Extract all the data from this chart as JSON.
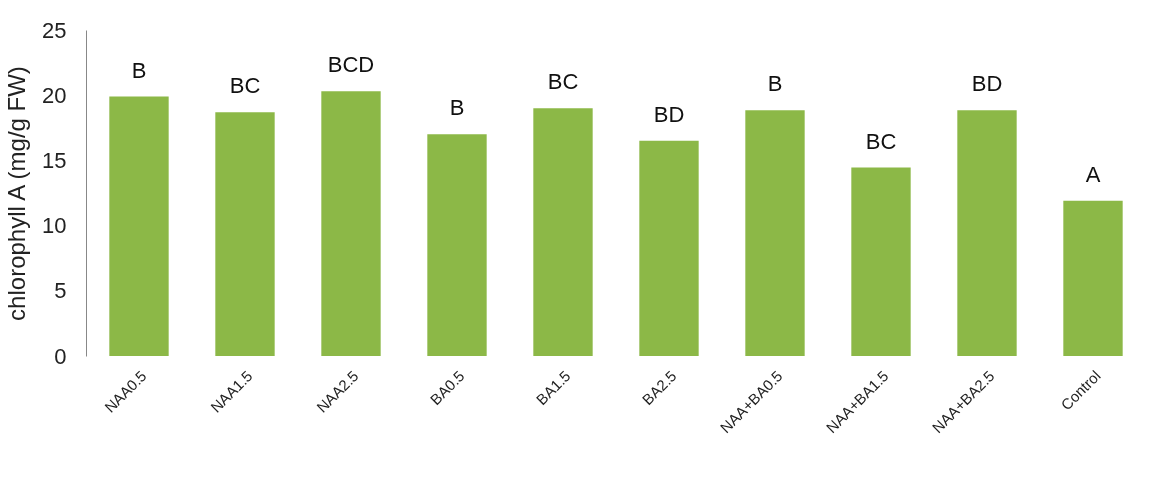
{
  "chart_data": {
    "type": "bar",
    "ylabel": "chlorophyll A  (mg/g FW)",
    "categories": [
      "NAA0.5",
      "NAA1.5",
      "NAA2.5",
      "BA0.5",
      "BA1.5",
      "BA2.5",
      "NAA+BA0.5",
      "NAA+BA1.5",
      "NAA+BA2.5",
      "Control"
    ],
    "values": [
      19.9,
      18.7,
      20.3,
      17.0,
      19.0,
      16.5,
      18.85,
      14.45,
      18.85,
      11.9
    ],
    "color": "#8cb847",
    "ylim": [
      0,
      25
    ],
    "yticks": [
      0,
      5,
      10,
      15,
      20,
      25
    ],
    "grid": false,
    "annotations": [
      {
        "text": "B",
        "x": "NAA0.5",
        "y": 19.9
      },
      {
        "text": "BC",
        "x": "NAA1.5",
        "y": 18.7
      },
      {
        "text": "BCD",
        "x": "NAA2.5",
        "y": 20.3
      },
      {
        "text": "B",
        "x": "BA0.5",
        "y": 17.0
      },
      {
        "text": "BC",
        "x": "BA1.5",
        "y": 19.0
      },
      {
        "text": "BD",
        "x": "BA2.5",
        "y": 16.5
      },
      {
        "text": "B",
        "x": "NAA+BA0.5",
        "y": 18.85
      },
      {
        "text": "BC",
        "x": "NAA+BA1.5",
        "y": 14.45
      },
      {
        "text": "BD",
        "x": "NAA+BA2.5",
        "y": 18.85
      },
      {
        "text": "A",
        "x": "Control",
        "y": 11.9
      }
    ]
  }
}
